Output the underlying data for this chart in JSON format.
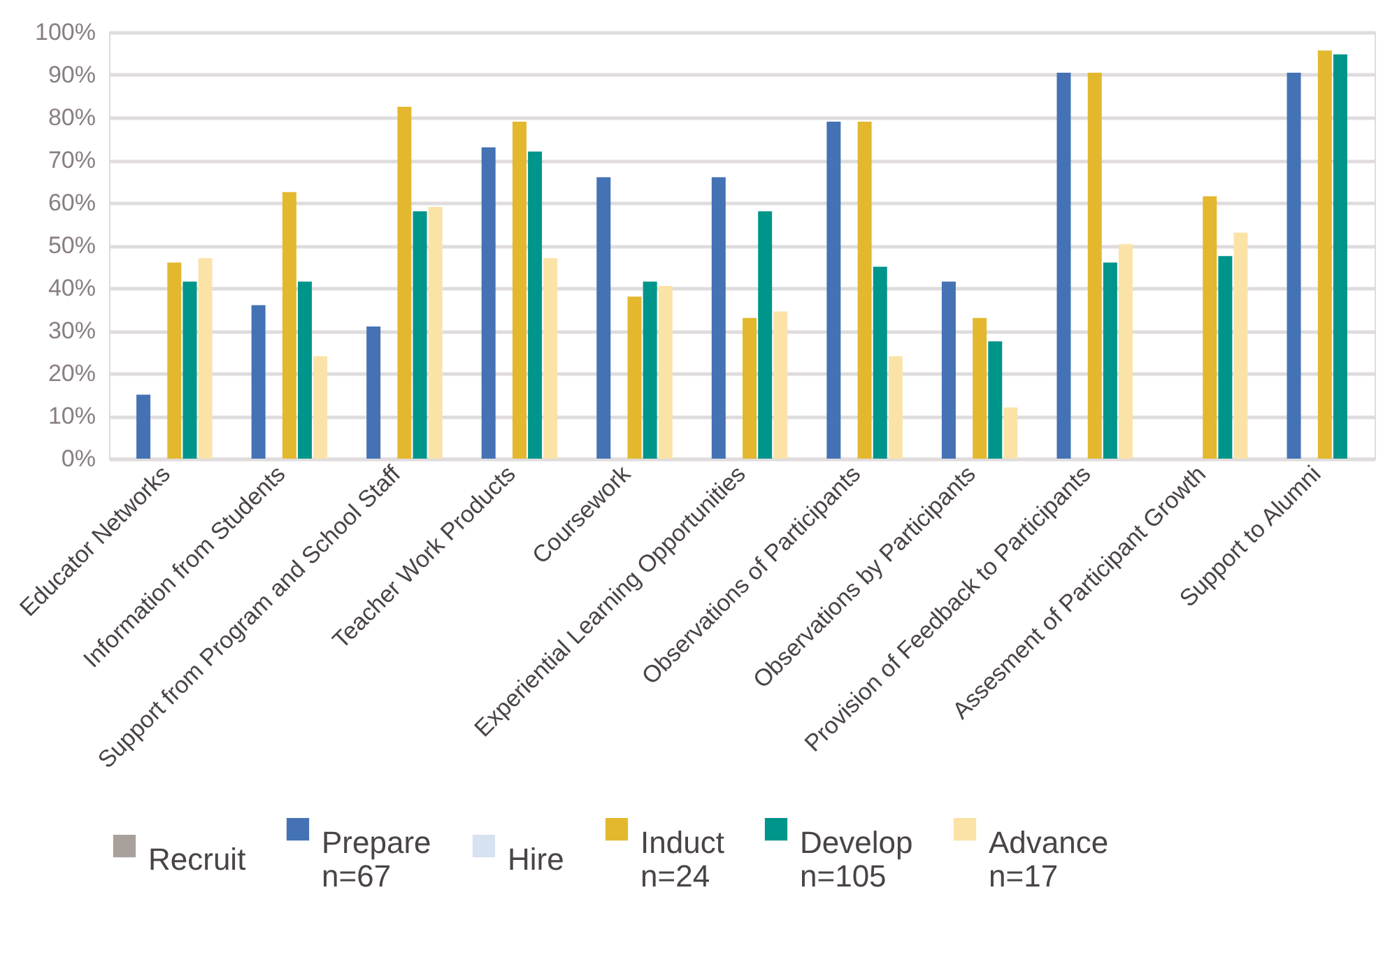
{
  "chart_data": {
    "type": "bar",
    "categories": [
      "Educator Networks",
      "Information from Students",
      "Support from Program and School Staff",
      "Teacher Work Products",
      "Coursework",
      "Experiential Learning Opportunities",
      "Observations of Participants",
      "Observations by Participants",
      "Provision of Feedback to Participants",
      "Assesment of Participant Growth",
      "Support to Alumni"
    ],
    "series": [
      {
        "name": "Recruit",
        "color": "#a8a09b",
        "values": [
          null,
          null,
          null,
          null,
          null,
          null,
          null,
          null,
          null,
          null,
          null
        ]
      },
      {
        "name": "Prepare\nn=67",
        "color": "#4472b4",
        "values": [
          15,
          36,
          31,
          73,
          66,
          66,
          79,
          41.5,
          90.5,
          null,
          90.5
        ]
      },
      {
        "name": "Hire",
        "color": "#d6e2f0",
        "values": [
          null,
          null,
          null,
          null,
          null,
          null,
          null,
          null,
          null,
          null,
          null
        ]
      },
      {
        "name": "Induct\nn=24",
        "color": "#e3b82e",
        "values": [
          46,
          62.5,
          82.5,
          79,
          38,
          33,
          79,
          33,
          90.5,
          61.5,
          95.7
        ]
      },
      {
        "name": "Develop\nn=105",
        "color": "#00958a",
        "values": [
          41.5,
          41.5,
          58,
          72,
          41.5,
          58,
          45,
          27.5,
          46,
          47.5,
          94.8
        ]
      },
      {
        "name": "Advance\nn=17",
        "color": "#fbe3a8",
        "values": [
          47,
          24,
          59,
          47,
          40.5,
          34.5,
          24,
          12,
          50.3,
          53,
          null
        ]
      }
    ],
    "ylim": [
      0,
      100
    ],
    "yticks": [
      {
        "value": 0,
        "label": "0%"
      },
      {
        "value": 10,
        "label": "10%"
      },
      {
        "value": 20,
        "label": "20%"
      },
      {
        "value": 30,
        "label": "30%"
      },
      {
        "value": 40,
        "label": "40%"
      },
      {
        "value": 50,
        "label": "50%"
      },
      {
        "value": 60,
        "label": "60%"
      },
      {
        "value": 70,
        "label": "70%"
      },
      {
        "value": 80,
        "label": "80%"
      },
      {
        "value": 90,
        "label": "90%"
      },
      {
        "value": 100,
        "label": "100%"
      }
    ],
    "grid": "y",
    "legend": "bottom"
  }
}
